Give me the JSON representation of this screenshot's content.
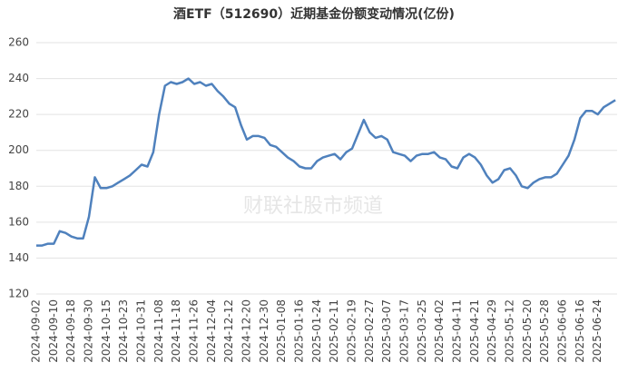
{
  "chart_data": {
    "type": "line",
    "title": "酒ETF（512690）近期基金份额变动情况(亿份)",
    "watermark": "财联社股市频道",
    "categories": [
      "2024-09-02",
      null,
      null,
      "2024-09-10",
      null,
      null,
      "2024-09-18",
      null,
      null,
      "2024-09-30",
      null,
      null,
      "2024-10-15",
      null,
      null,
      "2024-10-23",
      null,
      null,
      "2024-10-31",
      null,
      null,
      "2024-11-08",
      null,
      null,
      "2024-11-18",
      null,
      null,
      "2024-11-26",
      null,
      null,
      "2024-12-04",
      null,
      null,
      "2024-12-12",
      null,
      null,
      "2024-12-20",
      null,
      null,
      "2024-12-30",
      null,
      null,
      "2025-01-08",
      null,
      null,
      "2025-01-16",
      null,
      null,
      "2025-01-24",
      null,
      null,
      "2025-02-11",
      null,
      null,
      "2025-02-19",
      null,
      null,
      "2025-02-27",
      null,
      null,
      "2025-03-07",
      null,
      null,
      "2025-03-17",
      null,
      null,
      "2025-03-25",
      null,
      null,
      "2025-04-02",
      null,
      null,
      "2025-04-11",
      null,
      null,
      "2025-04-21",
      null,
      null,
      "2025-04-29",
      null,
      null,
      "2025-05-12",
      null,
      null,
      "2025-05-20",
      null,
      null,
      "2025-05-28",
      null,
      null,
      "2025-06-06",
      null,
      null,
      "2025-06-16",
      null,
      null,
      "2025-06-24",
      null,
      null,
      null
    ],
    "series": [
      {
        "name": "基金份额",
        "color": "#4f81bd",
        "values": [
          147,
          147,
          148,
          148,
          155,
          154,
          152,
          151,
          151,
          163,
          185,
          179,
          179,
          180,
          182,
          184,
          186,
          189,
          192,
          191,
          199,
          220,
          236,
          238,
          237,
          238,
          240,
          237,
          238,
          236,
          237,
          233,
          230,
          226,
          224,
          214,
          206,
          208,
          208,
          207,
          203,
          202,
          199,
          196,
          194,
          191,
          190,
          190,
          194,
          196,
          197,
          198,
          195,
          199,
          201,
          209,
          217,
          210,
          207,
          208,
          206,
          199,
          198,
          197,
          194,
          197,
          198,
          198,
          199,
          196,
          195,
          191,
          190,
          196,
          198,
          196,
          192,
          186,
          182,
          184,
          189,
          190,
          186,
          180,
          179,
          182,
          184,
          185,
          185,
          187,
          192,
          197,
          206,
          218,
          222,
          222,
          220,
          224,
          226,
          228
        ]
      }
    ],
    "ylim": [
      120,
      260
    ],
    "yticks": [
      120,
      140,
      160,
      180,
      200,
      220,
      240,
      260
    ],
    "grid": true
  }
}
